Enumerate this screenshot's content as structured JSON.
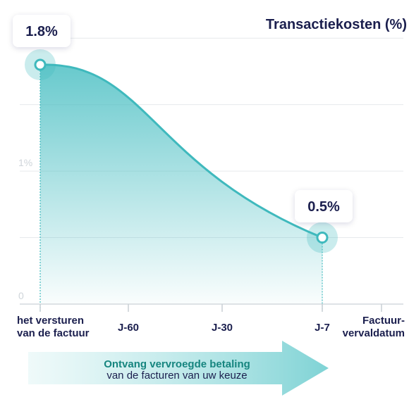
{
  "chart_data": {
    "type": "area",
    "title": "Transactiekosten (%)",
    "xlabel": "",
    "ylabel": "",
    "yticks": [
      {
        "value": 0,
        "label": "0"
      },
      {
        "value": 1,
        "label": "1%"
      }
    ],
    "ylim": [
      0,
      2
    ],
    "categories": [
      {
        "lines": [
          "het versturen",
          "van de factuur"
        ]
      },
      {
        "lines": [
          "J-60"
        ]
      },
      {
        "lines": [
          "J-30"
        ]
      },
      {
        "lines": [
          "J-7"
        ]
      },
      {
        "lines": [
          "Factuur-",
          "vervaldatum"
        ]
      }
    ],
    "series": [
      {
        "x_start": 0,
        "x_end": 3,
        "start_value": 1.8,
        "end_value": 0.5
      }
    ],
    "annotations": [
      {
        "label": "1.8%",
        "x": 0,
        "value": 1.8
      },
      {
        "label": "0.5%",
        "x": 3,
        "value": 0.5
      }
    ],
    "grid": true,
    "colors": {
      "area": "#4dc0c4",
      "line": "#3fb9bd",
      "text": "#1b1f4e",
      "grid": "#e6e9ec"
    }
  },
  "arrow": {
    "line1": "Ontvang vervroegde betaling",
    "line2": "van de facturen van uw keuze"
  }
}
